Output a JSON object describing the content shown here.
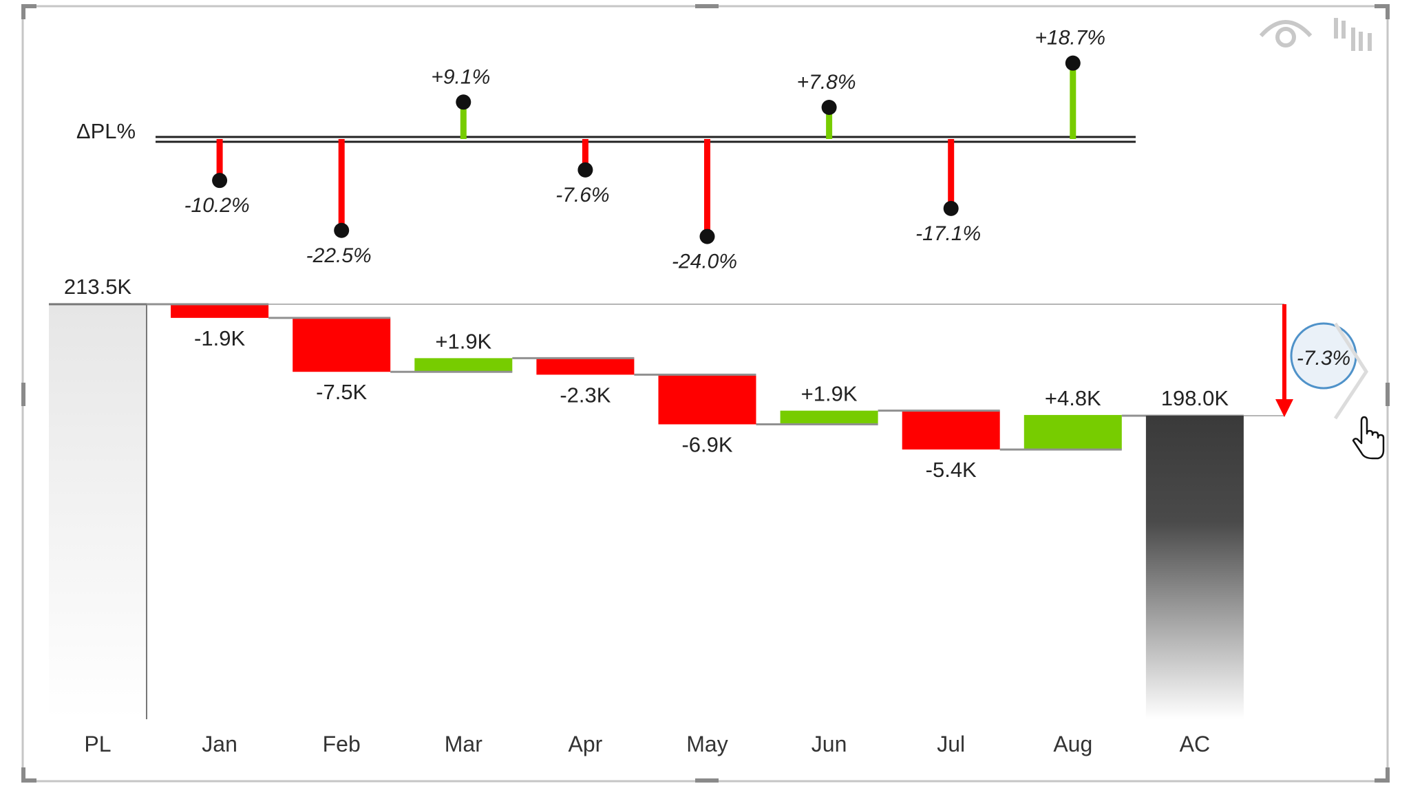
{
  "chart_data": {
    "type": "waterfall",
    "variance_label": "ΔPL%",
    "categories": [
      "PL",
      "Jan",
      "Feb",
      "Mar",
      "Apr",
      "May",
      "Jun",
      "Jul",
      "Aug",
      "AC"
    ],
    "start": {
      "category": "PL",
      "value": 213.5,
      "label": "213.5K"
    },
    "end": {
      "category": "AC",
      "value": 198.0,
      "label": "198.0K"
    },
    "deltas": [
      {
        "category": "Jan",
        "value": -1.9,
        "label": "-1.9K"
      },
      {
        "category": "Feb",
        "value": -7.5,
        "label": "-7.5K"
      },
      {
        "category": "Mar",
        "value": 1.9,
        "label": "+1.9K"
      },
      {
        "category": "Apr",
        "value": -2.3,
        "label": "-2.3K"
      },
      {
        "category": "May",
        "value": -6.9,
        "label": "-6.9K"
      },
      {
        "category": "Jun",
        "value": 1.9,
        "label": "+1.9K"
      },
      {
        "category": "Jul",
        "value": -5.4,
        "label": "-5.4K"
      },
      {
        "category": "Aug",
        "value": 4.8,
        "label": "+4.8K"
      }
    ],
    "variance_pct": [
      {
        "category": "Jan",
        "value": -10.2,
        "label": "-10.2%"
      },
      {
        "category": "Feb",
        "value": -22.5,
        "label": "-22.5%"
      },
      {
        "category": "Mar",
        "value": 9.1,
        "label": "+9.1%"
      },
      {
        "category": "Apr",
        "value": -7.6,
        "label": "-7.6%"
      },
      {
        "category": "May",
        "value": -24.0,
        "label": "-24.0%"
      },
      {
        "category": "Jun",
        "value": 7.8,
        "label": "+7.8%"
      },
      {
        "category": "Jul",
        "value": -17.1,
        "label": "-17.1%"
      },
      {
        "category": "Aug",
        "value": 18.7,
        "label": "+18.7%"
      }
    ],
    "total_variance": {
      "value": -7.3,
      "label": "-7.3%"
    },
    "colors": {
      "negative": "#ff0000",
      "positive": "#77cc00",
      "start_bar": "#e6e6e6",
      "end_bar": "#3a3a3a",
      "connector": "#909090",
      "pin": "#111111",
      "axis": "#222222"
    }
  },
  "toolbar": {
    "focus_icon": "eye-icon",
    "visual_icon": "bars-icon"
  },
  "pointer_icon": "hand-cursor-icon"
}
